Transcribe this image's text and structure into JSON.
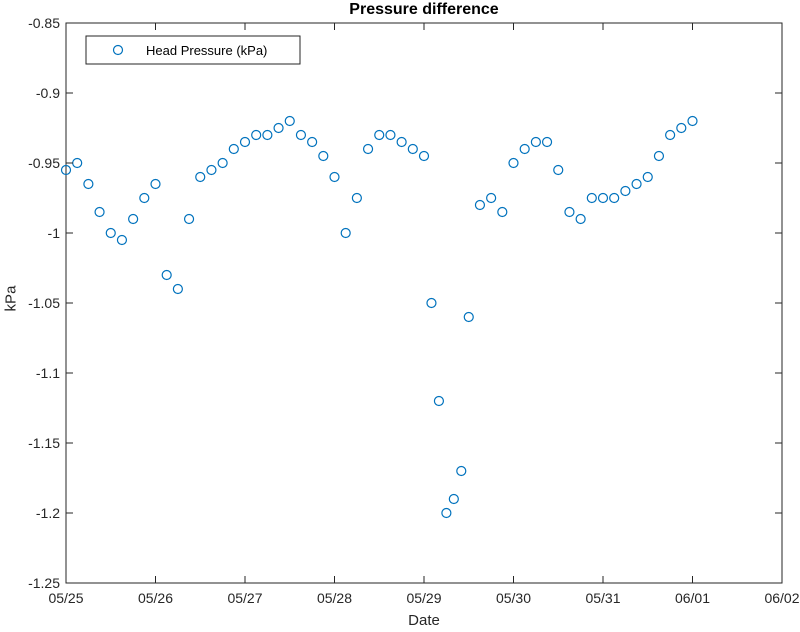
{
  "chart_data": {
    "type": "scatter",
    "title": "Pressure difference",
    "xlabel": "Date",
    "ylabel": "kPa",
    "xlim": [
      "05/25",
      "06/02"
    ],
    "ylim": [
      -1.25,
      -0.85
    ],
    "x_ticks": [
      "05/25",
      "05/26",
      "05/27",
      "05/28",
      "05/29",
      "05/30",
      "05/31",
      "06/01",
      "06/02"
    ],
    "y_ticks": [
      "-0.85",
      "-0.9",
      "-0.95",
      "-1",
      "-1.05",
      "-1.1",
      "-1.15",
      "-1.2",
      "-1.25"
    ],
    "marker": "circle",
    "grid": false,
    "legend_position": "top-left",
    "series": [
      {
        "name": "Head Pressure (kPa)",
        "color": "#0072BD",
        "x": [
          "05/25 00:00",
          "05/25 03:00",
          "05/25 06:00",
          "05/25 09:00",
          "05/25 12:00",
          "05/25 15:00",
          "05/25 18:00",
          "05/25 21:00",
          "05/26 00:00",
          "05/26 03:00",
          "05/26 06:00",
          "05/26 09:00",
          "05/26 12:00",
          "05/26 15:00",
          "05/26 18:00",
          "05/26 21:00",
          "05/27 00:00",
          "05/27 03:00",
          "05/27 06:00",
          "05/27 09:00",
          "05/27 12:00",
          "05/27 15:00",
          "05/27 18:00",
          "05/27 21:00",
          "05/28 00:00",
          "05/28 03:00",
          "05/28 06:00",
          "05/28 09:00",
          "05/28 12:00",
          "05/28 15:00",
          "05/28 18:00",
          "05/28 21:00",
          "05/29 00:00",
          "05/29 02:00",
          "05/29 04:00",
          "05/29 06:00",
          "05/29 08:00",
          "05/29 10:00",
          "05/29 12:00",
          "05/29 15:00",
          "05/29 18:00",
          "05/29 21:00",
          "05/30 00:00",
          "05/30 03:00",
          "05/30 06:00",
          "05/30 09:00",
          "05/30 12:00",
          "05/30 15:00",
          "05/30 18:00",
          "05/30 21:00",
          "05/31 00:00",
          "05/31 03:00",
          "05/31 06:00",
          "05/31 09:00",
          "05/31 12:00",
          "05/31 15:00",
          "05/31 18:00",
          "05/31 21:00",
          "06/01 00:00"
        ],
        "y": [
          -0.955,
          -0.95,
          -0.965,
          -0.985,
          -1.0,
          -1.005,
          -0.99,
          -0.975,
          -0.965,
          -1.03,
          -1.04,
          -0.99,
          -0.96,
          -0.955,
          -0.95,
          -0.94,
          -0.935,
          -0.93,
          -0.93,
          -0.925,
          -0.92,
          -0.93,
          -0.935,
          -0.945,
          -0.96,
          -1.0,
          -0.975,
          -0.94,
          -0.93,
          -0.93,
          -0.935,
          -0.94,
          -0.945,
          -1.05,
          -1.12,
          -1.2,
          -1.19,
          -1.17,
          -1.06,
          -0.98,
          -0.975,
          -0.985,
          -0.95,
          -0.94,
          -0.935,
          -0.935,
          -0.955,
          -0.985,
          -0.99,
          -0.975,
          -0.975,
          -0.975,
          -0.97,
          -0.965,
          -0.96,
          -0.945,
          -0.93,
          -0.925,
          -0.92
        ]
      }
    ]
  }
}
